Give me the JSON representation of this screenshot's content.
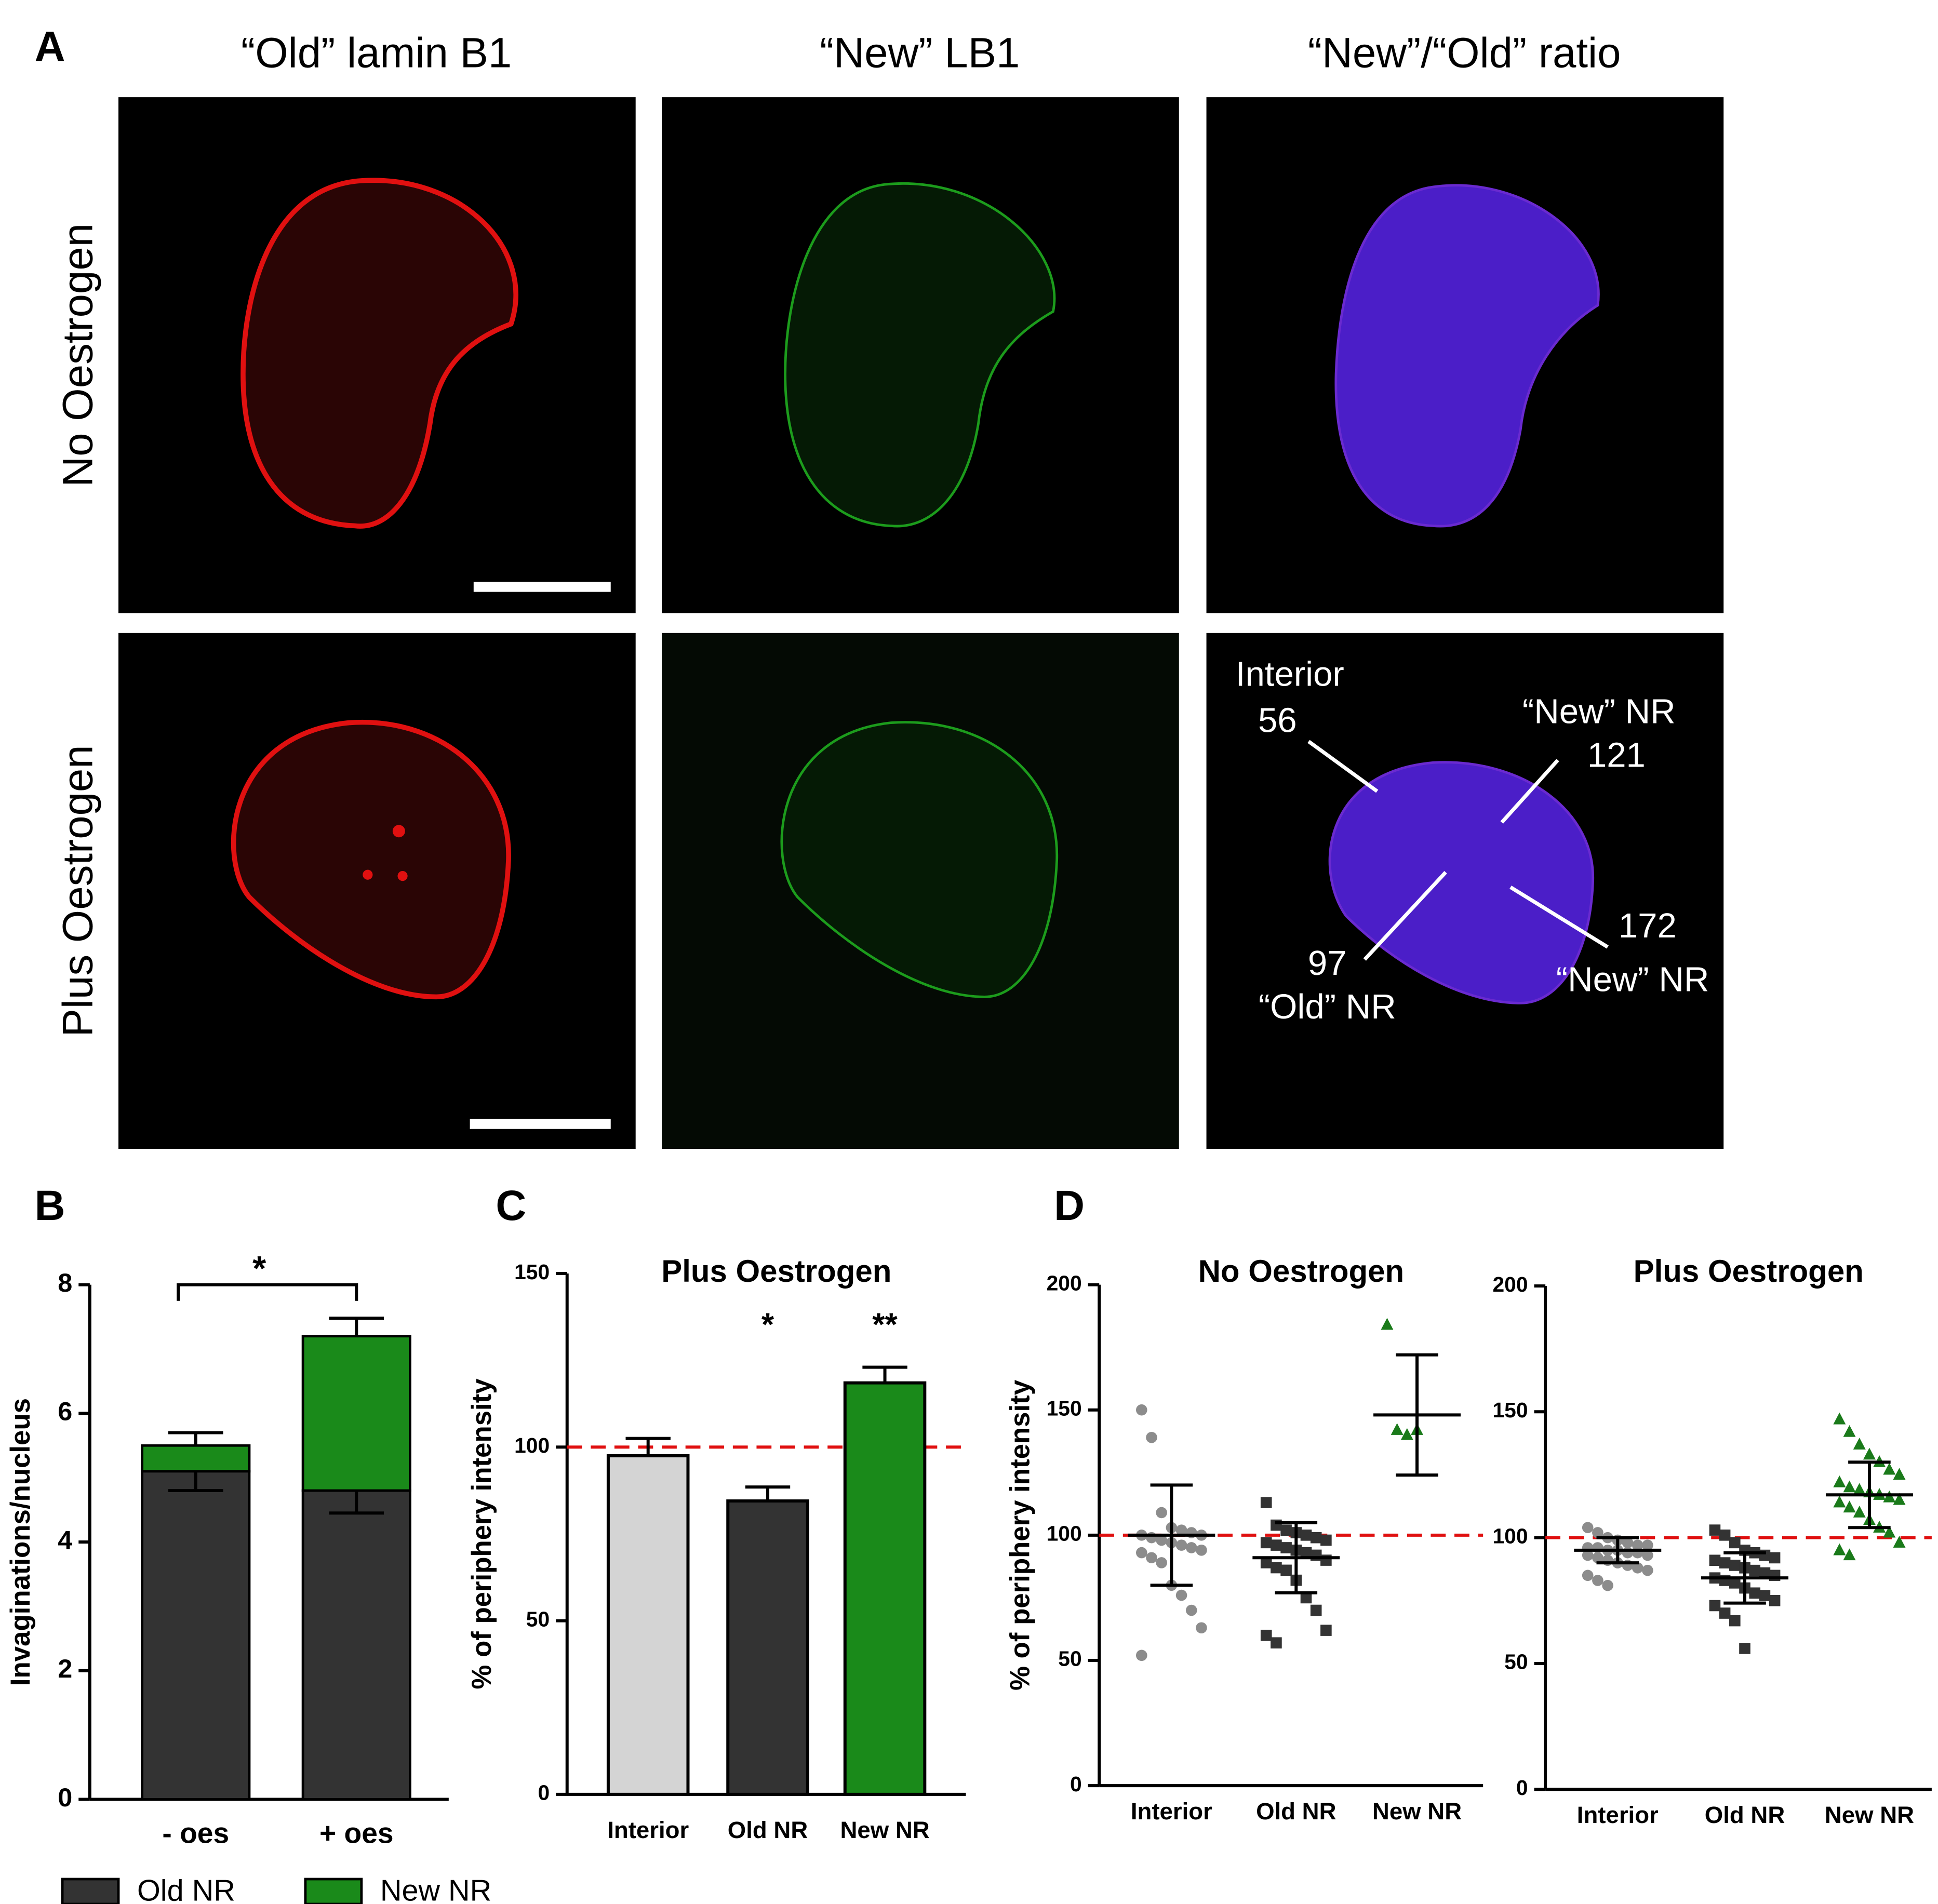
{
  "panel_a": {
    "label": "A",
    "column_titles": [
      "“Old” lamin B1",
      "“New” LB1",
      "“New”/“Old” ratio"
    ],
    "row_titles": [
      "No Oestrogen",
      "Plus Oestrogen"
    ],
    "annotations": [
      {
        "name": "Interior",
        "value": 56
      },
      {
        "name": "“New” NR",
        "value": 121
      },
      {
        "name": "“New” NR",
        "value": 172
      },
      {
        "name": "“Old” NR",
        "value": 97
      }
    ]
  },
  "chart_data": [
    {
      "type": "stacked_bar",
      "panel": "B",
      "ylabel": "Invaginations/nucleus",
      "categories": [
        "- oes",
        "+ oes"
      ],
      "series": [
        {
          "name": "Old NR",
          "color": "#333333",
          "values": [
            5.1,
            4.8
          ],
          "errors": [
            0.3,
            0.35
          ]
        },
        {
          "name": "New NR",
          "color": "#1a8a1a",
          "values": [
            0.4,
            2.4
          ],
          "errors": [
            0.2,
            0.28
          ]
        }
      ],
      "ylim": [
        0,
        8
      ],
      "yticks": [
        0,
        2,
        4,
        6,
        8
      ],
      "significance": "*"
    },
    {
      "type": "bar",
      "panel": "C",
      "title": "Plus Oestrogen",
      "ylabel": "% of periphery intensity",
      "categories": [
        "Interior",
        "Old NR",
        "New NR"
      ],
      "values": [
        97.5,
        84.5,
        118.5
      ],
      "errors": [
        5,
        4,
        4.5
      ],
      "colors": [
        "#d4d4d4",
        "#333333",
        "#1a8a1a"
      ],
      "annotations": [
        null,
        "*",
        "**"
      ],
      "ylim": [
        0,
        150
      ],
      "yticks": [
        0,
        50,
        100,
        150
      ],
      "reference_line": 100
    },
    {
      "type": "dot",
      "panel": "D",
      "title": "No Oestrogen",
      "ylabel": "% of periphery intensity",
      "categories": [
        "Interior",
        "Old NR",
        "New NR"
      ],
      "points": [
        [
          150,
          139,
          109,
          103,
          102,
          101,
          100,
          100,
          99,
          98,
          97,
          96,
          95,
          94,
          93,
          91,
          89,
          80,
          76,
          70,
          63,
          52
        ],
        [
          113,
          104,
          102,
          101,
          100,
          99,
          98,
          97,
          96,
          95,
          94,
          93,
          92,
          90,
          89,
          87,
          86,
          82,
          75,
          70,
          62,
          60,
          57
        ],
        [
          184,
          142,
          140,
          142
        ]
      ],
      "means": [
        100,
        91,
        148
      ],
      "sd": [
        20,
        14,
        24
      ],
      "colors": [
        "#8c8c8c",
        "#333333",
        "#1a7a1a"
      ],
      "markers": [
        "circle",
        "square",
        "triangle"
      ],
      "ylim": [
        0,
        200
      ],
      "yticks": [
        0,
        50,
        100,
        150,
        200
      ],
      "reference_line": 100
    },
    {
      "type": "dot",
      "title": "Plus Oestrogen",
      "categories": [
        "Interior",
        "Old NR",
        "New NR"
      ],
      "points": [
        [
          104,
          102,
          100,
          99,
          98,
          97,
          97,
          96,
          96,
          95,
          95,
          94,
          94,
          93,
          93,
          92,
          91,
          90,
          89,
          88,
          87,
          85,
          83,
          81
        ],
        [
          103,
          101,
          98,
          95,
          94,
          93,
          92,
          91,
          90,
          89,
          88,
          87,
          86,
          85,
          84,
          83,
          82,
          80,
          78,
          77,
          75,
          73,
          70,
          67,
          56
        ],
        [
          147,
          142,
          137,
          133,
          130,
          127,
          125,
          122,
          120,
          119,
          118,
          117,
          116,
          115,
          114,
          112,
          110,
          107,
          104,
          102,
          98,
          95,
          93
        ]
      ],
      "means": [
        95,
        84,
        117
      ],
      "sd": [
        5,
        10,
        13
      ],
      "colors": [
        "#8c8c8c",
        "#333333",
        "#1a7a1a"
      ],
      "markers": [
        "circle",
        "square",
        "triangle"
      ],
      "ylim": [
        0,
        200
      ],
      "yticks": [
        0,
        50,
        100,
        150,
        200
      ],
      "reference_line": 100
    }
  ]
}
